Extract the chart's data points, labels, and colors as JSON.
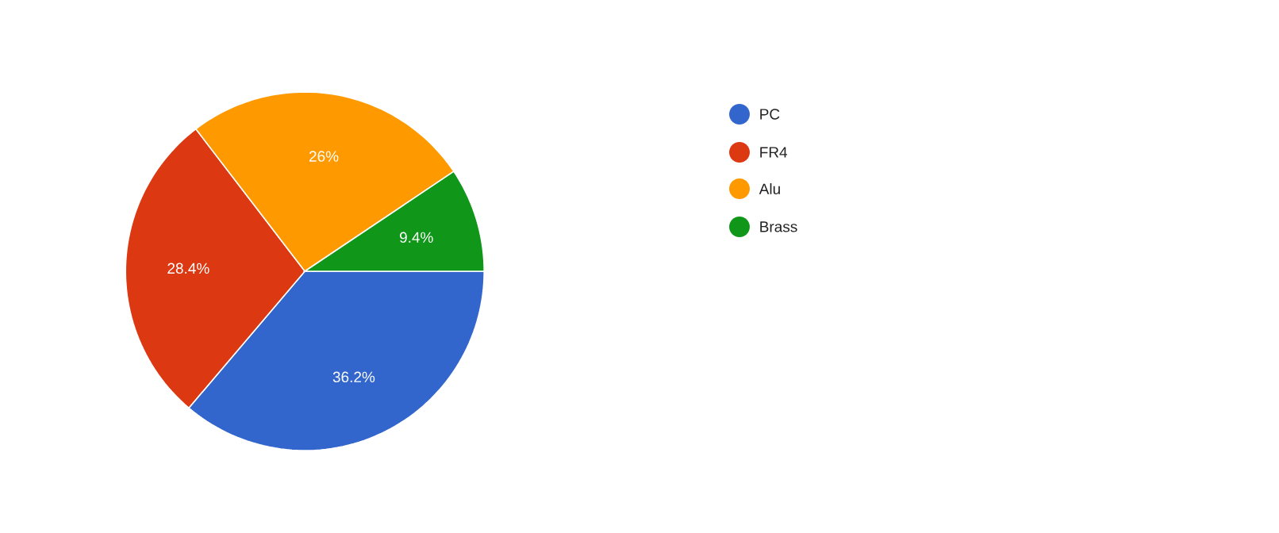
{
  "chart_data": {
    "type": "pie",
    "categories": [
      "PC",
      "FR4",
      "Alu",
      "Brass"
    ],
    "values": [
      36.2,
      28.4,
      26,
      9.4
    ],
    "colors": [
      "#3366cc",
      "#dc3912",
      "#ff9900",
      "#109618"
    ],
    "value_labels": [
      "36.2%",
      "28.4%",
      "26%",
      "9.4%"
    ],
    "legend": "right"
  }
}
